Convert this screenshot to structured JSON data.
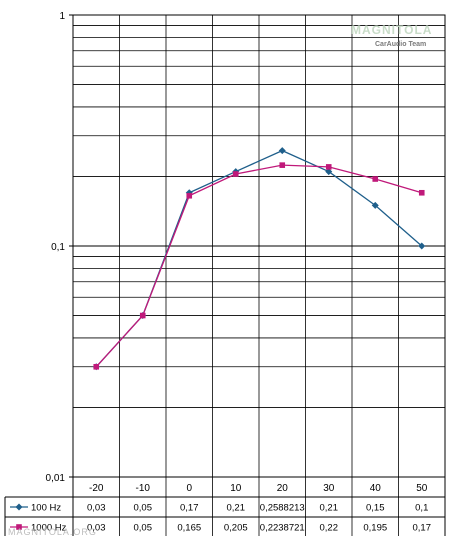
{
  "chart_data": {
    "type": "line",
    "y_scale": "log",
    "ylim": [
      0.01,
      1
    ],
    "y_ticks": [
      "1",
      "0,1",
      "0,01"
    ],
    "categories": [
      "-20",
      "-10",
      "0",
      "10",
      "20",
      "30",
      "40",
      "50"
    ],
    "series": [
      {
        "name": "100 Hz",
        "color": "#1f5f8b",
        "marker": "diamond",
        "values": [
          0.03,
          0.05,
          0.17,
          0.21,
          0.2588213,
          0.21,
          0.15,
          0.1
        ],
        "labels": [
          "0,03",
          "0,05",
          "0,17",
          "0,21",
          "0,2588213",
          "0,21",
          "0,15",
          "0,1"
        ]
      },
      {
        "name": "1000 Hz",
        "color": "#c0197a",
        "marker": "square",
        "values": [
          0.03,
          0.05,
          0.165,
          0.205,
          0.2238721,
          0.22,
          0.195,
          0.17
        ],
        "labels": [
          "0,03",
          "0,05",
          "0,165",
          "0,205",
          "0,2238721",
          "0,22",
          "0,195",
          "0,17"
        ]
      }
    ],
    "grid": true,
    "legend": "data-table"
  },
  "watermark": {
    "title": "MAGNITOLA",
    "subtitle": "CarAudio Team",
    "url": "MAGNITOLA.ORG"
  }
}
